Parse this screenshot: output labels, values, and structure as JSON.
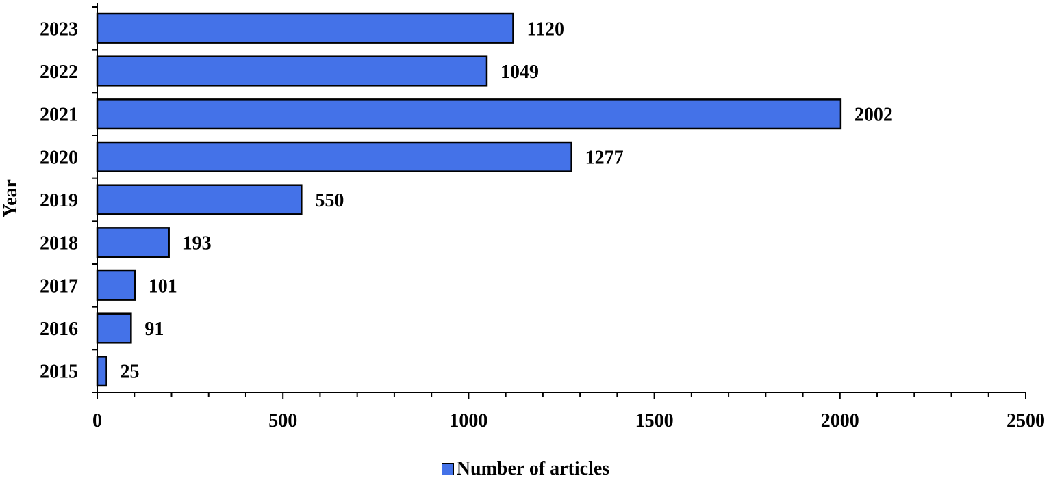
{
  "chart_data": {
    "type": "bar",
    "orientation": "horizontal",
    "categories": [
      "2023",
      "2022",
      "2021",
      "2020",
      "2019",
      "2018",
      "2017",
      "2016",
      "2015"
    ],
    "series": [
      {
        "name": "Number of articles",
        "values": [
          1120,
          1049,
          2002,
          1277,
          550,
          193,
          101,
          91,
          25
        ],
        "color": "#4472E8"
      }
    ],
    "data_labels": [
      "1120",
      "1049",
      "2002",
      "1277",
      "550",
      "193",
      "101",
      "91",
      "25"
    ],
    "xlabel": "",
    "ylabel": "Year",
    "xlim": [
      0,
      2500
    ],
    "x_ticks": [
      0,
      500,
      1000,
      1500,
      2000,
      2500
    ],
    "x_tick_labels": [
      "0",
      "500",
      "1000",
      "1500",
      "2000",
      "2500"
    ],
    "grid": false,
    "legend_position": "bottom-center"
  }
}
